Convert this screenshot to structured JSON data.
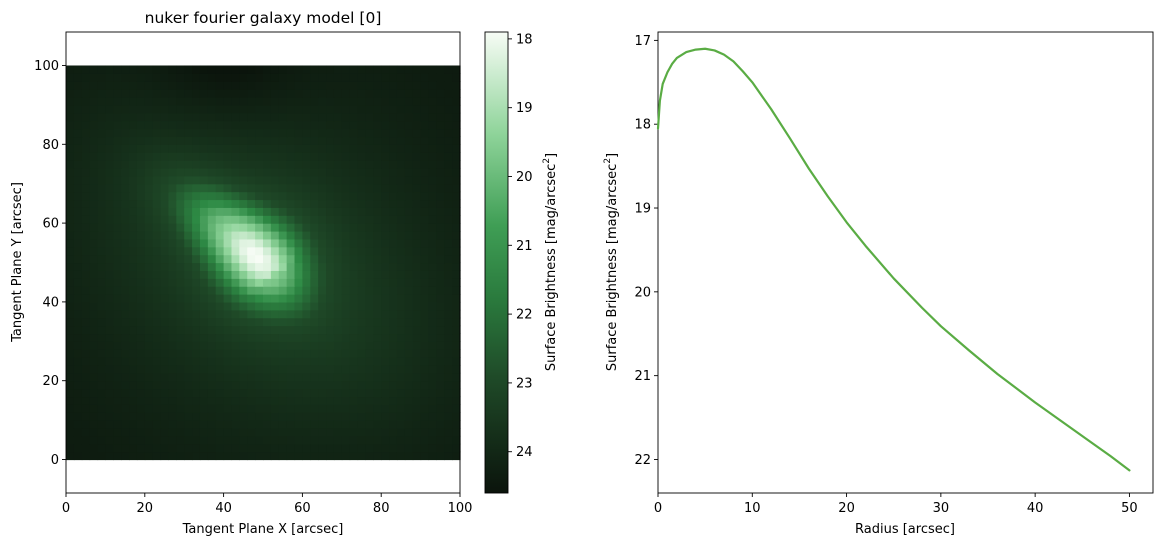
{
  "chart_data": [
    {
      "type": "heatmap",
      "title": "nuker fourier galaxy model [0]",
      "xlabel": "Tangent Plane X [arcsec]",
      "ylabel": "Tangent Plane Y [arcsec]",
      "xlim": [
        0,
        100
      ],
      "ylim": [
        -8.5,
        108.5
      ],
      "extent": [
        0,
        100,
        0,
        100
      ],
      "xticks": [
        0,
        20,
        40,
        60,
        80,
        100
      ],
      "yticks": [
        0,
        20,
        40,
        60,
        80,
        100
      ],
      "colormap": {
        "dark": "#0b140c",
        "mid": "#2e8b45",
        "light": "#f7fcf5"
      },
      "colorbar": {
        "label": "Surface Brightness [mag/arcsec",
        "label_sup": "2",
        "label_end": "]",
        "range": [
          17.9,
          24.6
        ],
        "ticks": [
          18,
          19,
          20,
          21,
          22,
          23,
          24
        ],
        "inverted": true
      },
      "model": {
        "center": [
          50,
          50
        ],
        "bar_angle_deg": 40,
        "arm_angle_deg": -40,
        "peak_mag": 17.9,
        "faint_mag": 24.6
      }
    },
    {
      "type": "line",
      "xlabel": "Radius [arcsec]",
      "ylabel": "Surface Brightness [mag/arcsec",
      "ylabel_sup": "2",
      "ylabel_end": "]",
      "xlim": [
        0,
        52.5
      ],
      "ylim": [
        22.4,
        16.9
      ],
      "y_inverted": true,
      "xticks": [
        0,
        10,
        20,
        30,
        40,
        50
      ],
      "yticks": [
        17,
        18,
        19,
        20,
        21,
        22
      ],
      "line_color": "#5aac44",
      "series": [
        {
          "x": [
            0.0,
            0.2,
            0.5,
            1,
            1.5,
            2,
            3,
            4,
            5,
            6,
            7,
            8,
            9,
            10,
            12,
            14,
            16,
            18,
            20,
            22,
            25,
            28,
            30,
            33,
            36,
            40,
            43,
            46,
            48,
            50
          ],
          "values": [
            18.05,
            17.72,
            17.52,
            17.38,
            17.28,
            17.21,
            17.14,
            17.11,
            17.1,
            17.12,
            17.17,
            17.25,
            17.37,
            17.5,
            17.82,
            18.17,
            18.53,
            18.86,
            19.17,
            19.45,
            19.84,
            20.19,
            20.41,
            20.7,
            20.98,
            21.32,
            21.56,
            21.8,
            21.96,
            22.13
          ]
        }
      ]
    }
  ]
}
